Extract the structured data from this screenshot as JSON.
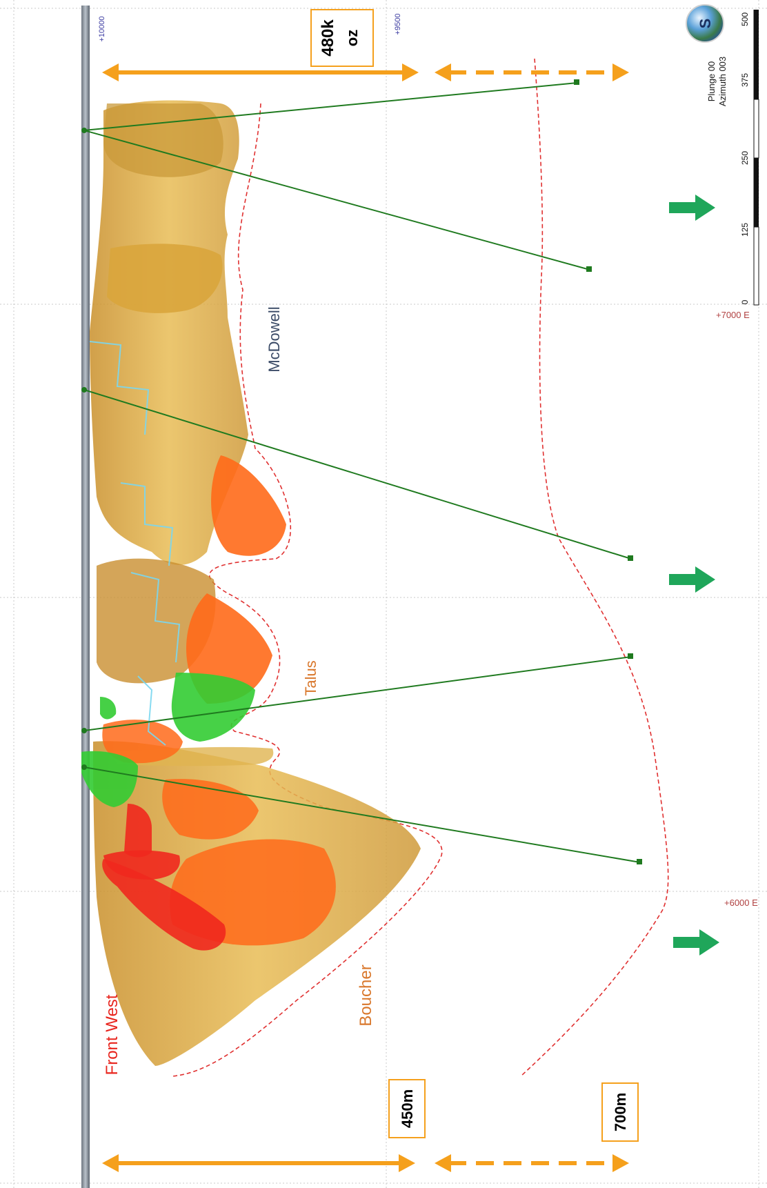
{
  "orebodies": {
    "mcdowell": "McDowell",
    "talus": "Talus",
    "boucher": "Boucher",
    "front_west": "Front West"
  },
  "callouts": {
    "ounces": "480k",
    "ounces_unit": "oz",
    "depth_current": "450m",
    "depth_target": "700m"
  },
  "elevation_labels": {
    "rl_10000": "+10000",
    "rl_9500": "+9500"
  },
  "easting_labels": {
    "e_7000": "+7000 E",
    "e_6000": "+6000 E"
  },
  "view": {
    "plunge": "Plunge 00",
    "azimuth": "Azimuth 003",
    "compass_letter": "S"
  },
  "scale_bar": {
    "ticks": [
      "0",
      "125",
      "250",
      "375",
      "500"
    ]
  },
  "colors": {
    "gold_envelope": "#d9a53c",
    "high_grade_orange": "#ff6a1a",
    "high_grade_red": "#f0281e",
    "green_zone": "#33cc33",
    "drillhole": "#1f7a1f",
    "arrow_orange": "#f5a01c",
    "arrow_green": "#1fa65a",
    "dashed_limit": "#e03030",
    "label_mcdowell": "#3a4a66",
    "label_talus": "#d9772b",
    "label_front_west": "#e8251e"
  }
}
